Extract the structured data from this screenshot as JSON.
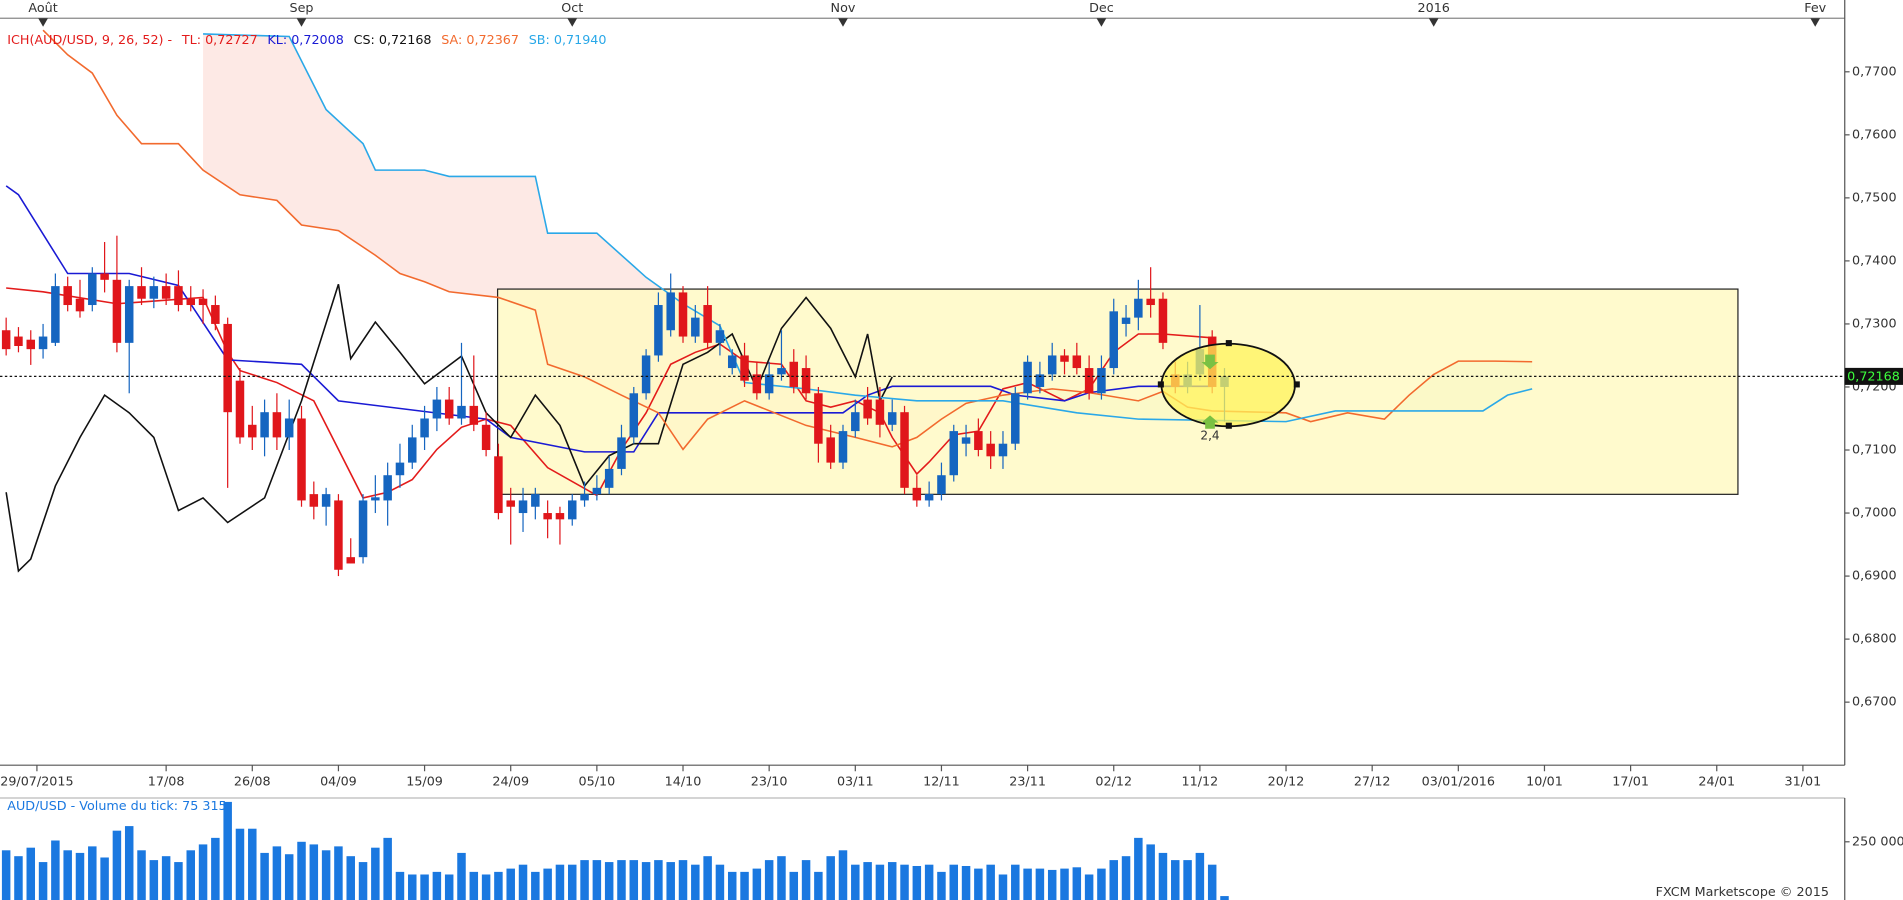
{
  "chart_data": {
    "type": "candlestick",
    "indicator": "ICH(AUD/USD, 9, 26, 52) -",
    "up_color": "#1565c0",
    "down_color": "#e0161b",
    "ohlc": [
      [
        0.729,
        0.731,
        0.725,
        0.726
      ],
      [
        0.728,
        0.7295,
        0.7255,
        0.7265
      ],
      [
        0.7275,
        0.729,
        0.7235,
        0.726
      ],
      [
        0.726,
        0.73,
        0.7245,
        0.728
      ],
      [
        0.727,
        0.738,
        0.7265,
        0.736
      ],
      [
        0.736,
        0.7375,
        0.732,
        0.733
      ],
      [
        0.734,
        0.737,
        0.731,
        0.732
      ],
      [
        0.733,
        0.739,
        0.732,
        0.738
      ],
      [
        0.738,
        0.743,
        0.735,
        0.737
      ],
      [
        0.737,
        0.744,
        0.7255,
        0.727
      ],
      [
        0.727,
        0.737,
        0.719,
        0.736
      ],
      [
        0.736,
        0.739,
        0.733,
        0.734
      ],
      [
        0.734,
        0.7375,
        0.7325,
        0.736
      ],
      [
        0.736,
        0.738,
        0.733,
        0.734
      ],
      [
        0.736,
        0.7385,
        0.732,
        0.733
      ],
      [
        0.734,
        0.736,
        0.732,
        0.733
      ],
      [
        0.734,
        0.7355,
        0.73,
        0.733
      ],
      [
        0.733,
        0.7345,
        0.729,
        0.73
      ],
      [
        0.73,
        0.731,
        0.704,
        0.716
      ],
      [
        0.721,
        0.723,
        0.711,
        0.712
      ],
      [
        0.714,
        0.717,
        0.71,
        0.712
      ],
      [
        0.712,
        0.718,
        0.709,
        0.716
      ],
      [
        0.716,
        0.719,
        0.71,
        0.712
      ],
      [
        0.712,
        0.718,
        0.71,
        0.715
      ],
      [
        0.715,
        0.717,
        0.701,
        0.702
      ],
      [
        0.703,
        0.705,
        0.699,
        0.701
      ],
      [
        0.701,
        0.704,
        0.698,
        0.703
      ],
      [
        0.702,
        0.703,
        0.69,
        0.691
      ],
      [
        0.693,
        0.696,
        0.692,
        0.692
      ],
      [
        0.693,
        0.703,
        0.692,
        0.702
      ],
      [
        0.702,
        0.706,
        0.7,
        0.7025
      ],
      [
        0.702,
        0.708,
        0.698,
        0.706
      ],
      [
        0.706,
        0.711,
        0.704,
        0.708
      ],
      [
        0.708,
        0.714,
        0.707,
        0.712
      ],
      [
        0.712,
        0.717,
        0.71,
        0.715
      ],
      [
        0.715,
        0.72,
        0.713,
        0.718
      ],
      [
        0.718,
        0.72,
        0.714,
        0.715
      ],
      [
        0.715,
        0.727,
        0.714,
        0.717
      ],
      [
        0.717,
        0.725,
        0.713,
        0.714
      ],
      [
        0.714,
        0.716,
        0.709,
        0.71
      ],
      [
        0.709,
        0.711,
        0.699,
        0.7
      ],
      [
        0.702,
        0.704,
        0.695,
        0.701
      ],
      [
        0.7,
        0.704,
        0.697,
        0.702
      ],
      [
        0.701,
        0.704,
        0.699,
        0.703
      ],
      [
        0.7,
        0.702,
        0.696,
        0.699
      ],
      [
        0.7,
        0.701,
        0.695,
        0.699
      ],
      [
        0.699,
        0.703,
        0.698,
        0.702
      ],
      [
        0.702,
        0.705,
        0.701,
        0.703
      ],
      [
        0.703,
        0.706,
        0.702,
        0.704
      ],
      [
        0.704,
        0.709,
        0.703,
        0.707
      ],
      [
        0.707,
        0.714,
        0.706,
        0.712
      ],
      [
        0.712,
        0.72,
        0.711,
        0.719
      ],
      [
        0.719,
        0.726,
        0.718,
        0.725
      ],
      [
        0.725,
        0.735,
        0.724,
        0.733
      ],
      [
        0.729,
        0.738,
        0.728,
        0.735
      ],
      [
        0.735,
        0.736,
        0.727,
        0.728
      ],
      [
        0.728,
        0.733,
        0.727,
        0.731
      ],
      [
        0.733,
        0.736,
        0.726,
        0.727
      ],
      [
        0.727,
        0.73,
        0.725,
        0.729
      ],
      [
        0.723,
        0.726,
        0.722,
        0.725
      ],
      [
        0.725,
        0.727,
        0.72,
        0.721
      ],
      [
        0.722,
        0.724,
        0.718,
        0.719
      ],
      [
        0.719,
        0.724,
        0.718,
        0.722
      ],
      [
        0.722,
        0.729,
        0.721,
        0.723
      ],
      [
        0.724,
        0.726,
        0.719,
        0.72
      ],
      [
        0.723,
        0.725,
        0.718,
        0.719
      ],
      [
        0.719,
        0.72,
        0.708,
        0.711
      ],
      [
        0.712,
        0.714,
        0.707,
        0.708
      ],
      [
        0.708,
        0.714,
        0.707,
        0.713
      ],
      [
        0.713,
        0.718,
        0.712,
        0.716
      ],
      [
        0.718,
        0.72,
        0.714,
        0.715
      ],
      [
        0.718,
        0.72,
        0.712,
        0.714
      ],
      [
        0.714,
        0.718,
        0.713,
        0.716
      ],
      [
        0.716,
        0.717,
        0.703,
        0.704
      ],
      [
        0.704,
        0.706,
        0.701,
        0.702
      ],
      [
        0.702,
        0.705,
        0.701,
        0.703
      ],
      [
        0.703,
        0.708,
        0.702,
        0.706
      ],
      [
        0.706,
        0.714,
        0.705,
        0.713
      ],
      [
        0.711,
        0.714,
        0.709,
        0.712
      ],
      [
        0.713,
        0.715,
        0.709,
        0.71
      ],
      [
        0.711,
        0.713,
        0.707,
        0.709
      ],
      [
        0.709,
        0.713,
        0.707,
        0.711
      ],
      [
        0.711,
        0.72,
        0.71,
        0.719
      ],
      [
        0.719,
        0.725,
        0.718,
        0.724
      ],
      [
        0.72,
        0.724,
        0.719,
        0.722
      ],
      [
        0.722,
        0.727,
        0.721,
        0.725
      ],
      [
        0.725,
        0.726,
        0.722,
        0.724
      ],
      [
        0.725,
        0.727,
        0.722,
        0.723
      ],
      [
        0.723,
        0.725,
        0.718,
        0.719
      ],
      [
        0.719,
        0.725,
        0.718,
        0.723
      ],
      [
        0.723,
        0.734,
        0.722,
        0.732
      ],
      [
        0.73,
        0.733,
        0.728,
        0.731
      ],
      [
        0.731,
        0.737,
        0.729,
        0.734
      ],
      [
        0.734,
        0.739,
        0.731,
        0.733
      ],
      [
        0.734,
        0.735,
        0.726,
        0.727
      ],
      [
        0.722,
        0.724,
        0.719,
        0.72
      ],
      [
        0.72,
        0.724,
        0.719,
        0.722
      ],
      [
        0.722,
        0.733,
        0.721,
        0.726
      ],
      [
        0.728,
        0.729,
        0.719,
        0.72
      ],
      [
        0.72,
        0.723,
        0.7145,
        0.7217
      ]
    ],
    "lines": [
      {
        "name": "TL: 0,72727",
        "color": "#e31b1b",
        "x": [
          0,
          3,
          9,
          16,
          18,
          19,
          22,
          25,
          29,
          31,
          33,
          35,
          37,
          39,
          41,
          44,
          48,
          50,
          52,
          54,
          56,
          58,
          60,
          63,
          65,
          67,
          69,
          71,
          72,
          74,
          75,
          77,
          79,
          81,
          83,
          86,
          88,
          90,
          92,
          94,
          98
        ],
        "values": [
          0.7357,
          0.7351,
          0.7332,
          0.7342,
          0.7255,
          0.7226,
          0.7207,
          0.7178,
          0.7024,
          0.7033,
          0.7053,
          0.7101,
          0.7136,
          0.7149,
          0.7139,
          0.7072,
          0.7028,
          0.7101,
          0.7159,
          0.7236,
          0.7255,
          0.7268,
          0.7241,
          0.7236,
          0.7178,
          0.7168,
          0.7178,
          0.7159,
          0.712,
          0.7062,
          0.7081,
          0.7124,
          0.713,
          0.7197,
          0.7207,
          0.7178,
          0.7197,
          0.7255,
          0.7284,
          0.7284,
          0.7278
        ]
      },
      {
        "name": "KL: 0,72008",
        "color": "#1a1ad4",
        "x": [
          0,
          1,
          5,
          10,
          14,
          18,
          24,
          27,
          39,
          41,
          47,
          51,
          53,
          68,
          70,
          72,
          80,
          82,
          86,
          88,
          92,
          98
        ],
        "values": [
          0.7519,
          0.7505,
          0.738,
          0.738,
          0.7361,
          0.7243,
          0.7236,
          0.7178,
          0.7149,
          0.712,
          0.7097,
          0.7097,
          0.7159,
          0.7159,
          0.7187,
          0.7201,
          0.7201,
          0.7187,
          0.7178,
          0.7191,
          0.7201,
          0.7201
        ]
      },
      {
        "name": "CS: 0,72168",
        "color": "#111111",
        "x": [
          0,
          1,
          2,
          4,
          6,
          8,
          10,
          12,
          14,
          16,
          18,
          21,
          24,
          27,
          28,
          30,
          32,
          34,
          37,
          39,
          41,
          43,
          45,
          47,
          49,
          51,
          53,
          55,
          57,
          59,
          61,
          63,
          65,
          67,
          69,
          70,
          71,
          72
        ],
        "values": [
          0.7033,
          0.6908,
          0.6927,
          0.7043,
          0.712,
          0.7187,
          0.7159,
          0.712,
          0.7004,
          0.7024,
          0.6985,
          0.7024,
          0.7178,
          0.7363,
          0.7245,
          0.7303,
          0.7255,
          0.7205,
          0.7249,
          0.7159,
          0.712,
          0.7187,
          0.7139,
          0.7043,
          0.7091,
          0.711,
          0.711,
          0.7236,
          0.7255,
          0.7284,
          0.7197,
          0.7293,
          0.7342,
          0.7293,
          0.7216,
          0.7284,
          0.7178,
          0.7216
        ]
      },
      {
        "name": "SA: 0,72367",
        "color": "#f26a2e",
        "x": [
          3,
          5,
          7,
          9,
          11,
          14,
          16,
          19,
          22,
          24,
          27,
          30,
          32,
          34,
          36,
          40,
          43,
          44,
          47,
          50,
          53,
          55,
          57,
          60,
          65,
          69,
          72,
          74,
          76,
          78,
          81,
          85,
          88,
          92,
          94,
          96,
          98,
          104,
          106,
          109,
          112,
          114,
          116,
          118,
          121,
          124
        ],
        "values": [
          0.7766,
          0.7727,
          0.7698,
          0.7631,
          0.7586,
          0.7586,
          0.7544,
          0.7505,
          0.7496,
          0.7457,
          0.7448,
          0.7409,
          0.738,
          0.7367,
          0.7351,
          0.7342,
          0.7322,
          0.7236,
          0.7216,
          0.7187,
          0.7159,
          0.7101,
          0.7149,
          0.7178,
          0.7139,
          0.712,
          0.7105,
          0.712,
          0.7149,
          0.7174,
          0.7187,
          0.7197,
          0.7191,
          0.7178,
          0.7193,
          0.7168,
          0.7162,
          0.7159,
          0.7145,
          0.7159,
          0.7149,
          0.7187,
          0.722,
          0.7241,
          0.7241,
          0.724
        ]
      },
      {
        "name": "SB: 0,71940",
        "color": "#2aa8e8",
        "x": [
          16,
          23,
          26,
          29,
          30,
          34,
          36,
          43,
          44,
          48,
          52,
          55,
          58,
          60,
          65,
          69,
          74,
          81,
          87,
          92,
          104,
          108,
          120,
          122,
          124
        ],
        "values": [
          0.776,
          0.7756,
          0.764,
          0.7586,
          0.7544,
          0.7544,
          0.7534,
          0.7534,
          0.7444,
          0.7444,
          0.7374,
          0.7332,
          0.7297,
          0.7207,
          0.7197,
          0.7187,
          0.7178,
          0.7178,
          0.7159,
          0.7149,
          0.7145,
          0.7162,
          0.7162,
          0.7187,
          0.7197
        ]
      }
    ],
    "cloud_colors": [
      "#fde3de",
      "#dff3d6"
    ],
    "last_price": {
      "value": 0.72168,
      "label": "0,72168"
    },
    "ylim": [
      0.66,
      0.7785
    ],
    "yticks": [
      {
        "value": 0.67,
        "label": "0,6700"
      },
      {
        "value": 0.68,
        "label": "0,6800"
      },
      {
        "value": 0.69,
        "label": "0,6900"
      },
      {
        "value": 0.7,
        "label": "0,7000"
      },
      {
        "value": 0.71,
        "label": "0,7100"
      },
      {
        "value": 0.72,
        "label": "0,7200"
      },
      {
        "value": 0.73,
        "label": "0,7300"
      },
      {
        "value": 0.74,
        "label": "0,7400"
      },
      {
        "value": 0.75,
        "label": "0,7500"
      },
      {
        "value": 0.76,
        "label": "0,7600"
      },
      {
        "value": 0.77,
        "label": "0,7700"
      }
    ],
    "xlim": [
      -0.5,
      149.4
    ],
    "xticks": [
      {
        "value": 2.5,
        "label": "29/07/2015"
      },
      {
        "value": 13,
        "label": "17/08"
      },
      {
        "value": 20,
        "label": "26/08"
      },
      {
        "value": 27,
        "label": "04/09"
      },
      {
        "value": 34,
        "label": "15/09"
      },
      {
        "value": 41,
        "label": "24/09"
      },
      {
        "value": 48,
        "label": "05/10"
      },
      {
        "value": 55,
        "label": "14/10"
      },
      {
        "value": 62,
        "label": "23/10"
      },
      {
        "value": 69,
        "label": "03/11"
      },
      {
        "value": 76,
        "label": "12/11"
      },
      {
        "value": 83,
        "label": "23/11"
      },
      {
        "value": 90,
        "label": "02/12"
      },
      {
        "value": 97,
        "label": "11/12"
      },
      {
        "value": 104,
        "label": "20/12"
      },
      {
        "value": 111,
        "label": "27/12"
      },
      {
        "value": 118,
        "label": "03/01/2016"
      },
      {
        "value": 125,
        "label": "10/01"
      },
      {
        "value": 132,
        "label": "17/01"
      },
      {
        "value": 139,
        "label": "24/01"
      },
      {
        "value": 146,
        "label": "31/01"
      }
    ],
    "top_xticks": [
      {
        "value": 3,
        "label": "Août"
      },
      {
        "value": 24,
        "label": "Sep"
      },
      {
        "value": 46,
        "label": "Oct"
      },
      {
        "value": 68,
        "label": "Nov"
      },
      {
        "value": 89,
        "label": "Dec"
      },
      {
        "value": 116,
        "label": "2016"
      },
      {
        "value": 147,
        "label": "Fev"
      }
    ],
    "annotations": [
      "2,4"
    ],
    "volume": {
      "type": "bar",
      "title": "AUD/USD - Volume du tick: 75 315",
      "color": "#1a78e0",
      "values": [
        237000,
        228000,
        241000,
        219000,
        252000,
        237000,
        233000,
        243000,
        226000,
        267000,
        274000,
        237000,
        222000,
        228000,
        219000,
        237000,
        246000,
        256000,
        311000,
        270000,
        270000,
        233000,
        243000,
        231000,
        250000,
        246000,
        237000,
        243000,
        228000,
        219000,
        241000,
        256000,
        204000,
        200000,
        200000,
        204000,
        200000,
        233000,
        204000,
        200000,
        204000,
        209000,
        215000,
        204000,
        209000,
        215000,
        215000,
        222000,
        222000,
        219000,
        222000,
        222000,
        219000,
        222000,
        219000,
        222000,
        215000,
        228000,
        215000,
        204000,
        204000,
        209000,
        222000,
        228000,
        204000,
        222000,
        204000,
        228000,
        237000,
        215000,
        219000,
        215000,
        219000,
        215000,
        213000,
        215000,
        204000,
        215000,
        213000,
        209000,
        215000,
        200000,
        215000,
        209000,
        209000,
        207000,
        209000,
        211000,
        200000,
        209000,
        222000,
        228000,
        256000,
        246000,
        233000,
        222000,
        222000,
        233000,
        215000,
        167000
      ],
      "ylim": [
        161000,
        317000
      ],
      "yticks": [
        {
          "value": 250000,
          "label": "250 000"
        }
      ]
    },
    "credit": "FXCM Marketscope © 2015"
  }
}
